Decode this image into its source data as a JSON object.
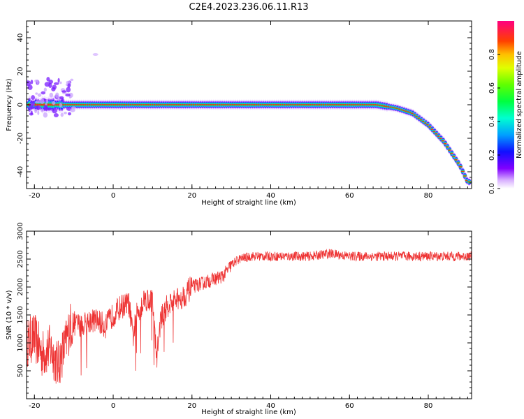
{
  "title": "C2E4.2023.236.06.11.R13",
  "chart_data": [
    {
      "type": "heatmap",
      "xlabel": "Height of straight line (km)",
      "ylabel": "Frequency (Hz)",
      "xlim": [
        -22,
        91
      ],
      "ylim": [
        -50,
        50
      ],
      "x_ticks": [
        "-20",
        "0",
        "20",
        "40",
        "60",
        "80"
      ],
      "y_ticks": [
        "40",
        "20",
        "0",
        "-20",
        "-40"
      ],
      "colorbar": {
        "label": "Normalized spectral amplitude",
        "range": [
          0,
          1
        ],
        "ticks": [
          "0.0",
          "0.2",
          "0.4",
          "0.6",
          "0.8"
        ]
      },
      "ridge": {
        "description_points_x": [
          -21,
          -10,
          0,
          20,
          40,
          60,
          67,
          72,
          76,
          80,
          84,
          88,
          90
        ],
        "description_points_y": [
          0,
          0,
          0,
          0,
          0,
          0,
          0,
          -2,
          -5,
          -12,
          -22,
          -36,
          -46
        ]
      }
    },
    {
      "type": "line",
      "xlabel": "Height of straight line (km)",
      "ylabel": "SNR (10 * v/v)",
      "xlim": [
        -22,
        91
      ],
      "ylim": [
        0,
        3000
      ],
      "x_ticks": [
        "-20",
        "0",
        "20",
        "40",
        "60",
        "80"
      ],
      "y_ticks": [
        "3000",
        "2500",
        "2000",
        "1500",
        "1000",
        "500"
      ],
      "color": "#ee3333",
      "series": [
        {
          "x": [
            -22,
            -20,
            -18,
            -16,
            -14,
            -12,
            -11,
            -10,
            -8,
            -6,
            -4,
            -2,
            0,
            2,
            4,
            5,
            6,
            8,
            10,
            11,
            12,
            14,
            16,
            18,
            20,
            22,
            24,
            26,
            28,
            30,
            32,
            35,
            40,
            45,
            50,
            55,
            60,
            65,
            70,
            75,
            80,
            85,
            91
          ],
          "y": [
            1000,
            1100,
            800,
            900,
            600,
            1000,
            1300,
            1350,
            1300,
            1400,
            1400,
            1300,
            1500,
            1650,
            1700,
            1100,
            1500,
            1800,
            1750,
            700,
            1400,
            1700,
            1750,
            1850,
            2000,
            2050,
            2100,
            2150,
            2200,
            2400,
            2500,
            2550,
            2550,
            2550,
            2550,
            2600,
            2550,
            2550,
            2550,
            2550,
            2550,
            2550,
            2550
          ]
        }
      ]
    }
  ]
}
